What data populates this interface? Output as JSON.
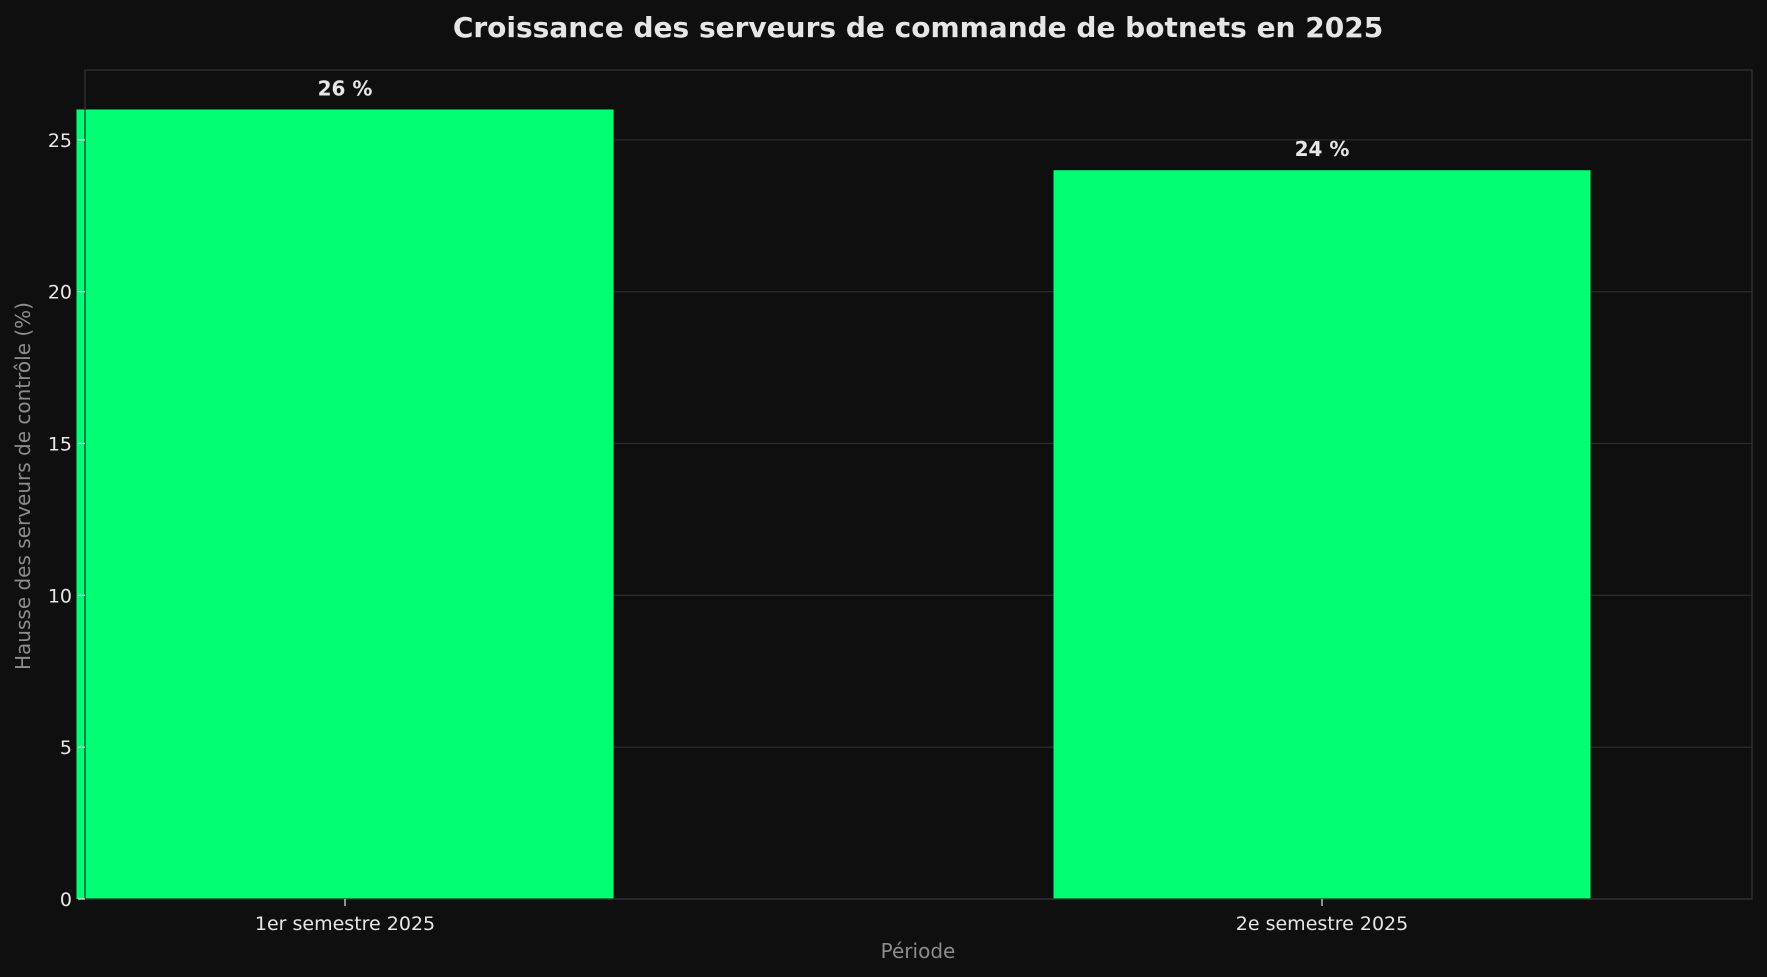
{
  "chart_data": {
    "type": "bar",
    "title": "Croissance des serveurs de commande de botnets en 2025",
    "xlabel": "Période",
    "ylabel": "Hausse des serveurs de contrôle (%)",
    "categories": [
      "1er semestre 2025",
      "2e semestre 2025"
    ],
    "values": [
      26,
      24
    ],
    "data_labels": [
      "26 %",
      "24 %"
    ],
    "ylim": [
      0,
      27.3
    ],
    "yticks": [
      0,
      5,
      10,
      15,
      20,
      25
    ],
    "grid": true,
    "legend": "none",
    "colors": {
      "background": "#0f0f0f",
      "bar": "#00ff73",
      "grid": "#2a2a2a",
      "frame": "#333333",
      "text": "#e6e6e6",
      "axis_label": "#8c8c8c"
    }
  }
}
